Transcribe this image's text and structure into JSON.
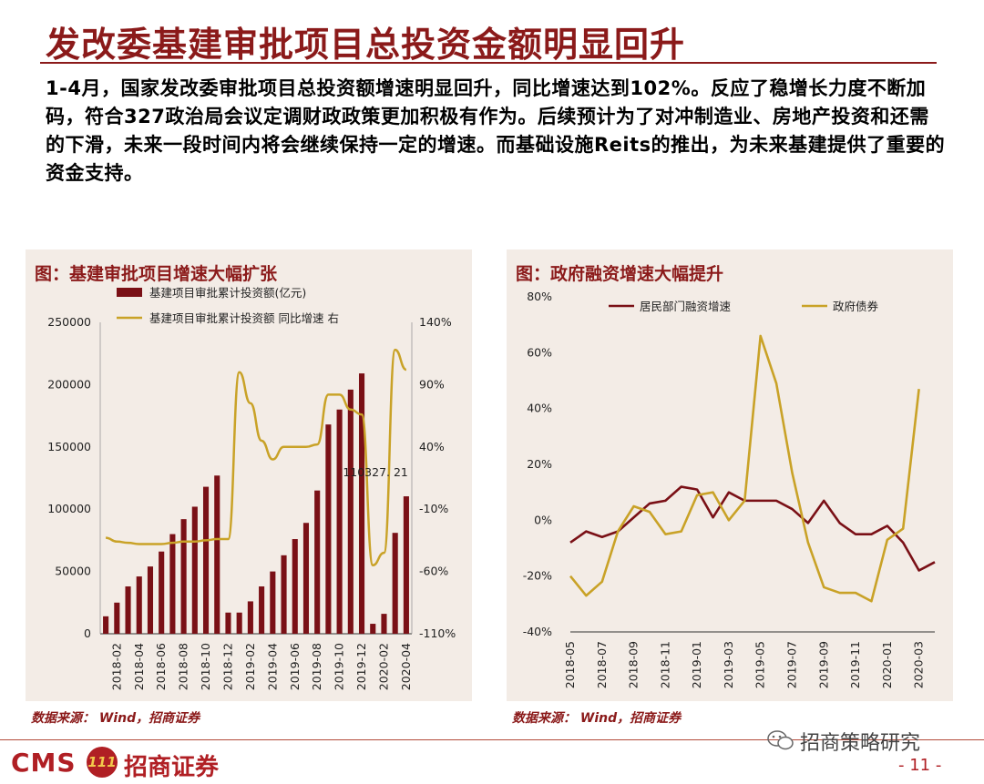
{
  "header": {
    "title": "发改委基建审批项目总投资金额明显回升",
    "paragraph": "1-4月，国家发改委审批项目总投资额增速明显回升，同比增速达到102%。反应了稳增长力度不断加码，符合327政治局会议定调财政政策更加积极有作为。后续预计为了对冲制造业、房地产投资和还需的下滑，未来一段时间内将会继续保持一定的增速。而基础设施Reits的推出，为未来基建提供了重要的资金支持。"
  },
  "left_panel": {
    "title": "图：基建审批项目增速大幅扩张",
    "source": "数据来源： Wind，招商证券"
  },
  "right_panel": {
    "title": "图：政府融资增速大幅提升",
    "source": "数据来源： Wind，招商证券"
  },
  "footer": {
    "logo_latin": "CMS",
    "logo_badge": "111",
    "logo_cn": "招商证券",
    "wechat_account": "招商策略研究",
    "page_number": "- 11 -"
  },
  "colors": {
    "brand": "#8b1a1a",
    "bar": "#7a1016",
    "gold": "#c9a227",
    "panel_bg": "#f3ece6"
  },
  "chart_data": [
    {
      "type": "bar+line",
      "title": "图：基建审批项目增速大幅扩张",
      "categories": [
        "2018-01",
        "2018-02",
        "2018-03",
        "2018-04",
        "2018-05",
        "2018-06",
        "2018-07",
        "2018-08",
        "2018-09",
        "2018-10",
        "2018-11",
        "2018-12",
        "2019-01",
        "2019-02",
        "2019-03",
        "2019-04",
        "2019-05",
        "2019-06",
        "2019-07",
        "2019-08",
        "2019-09",
        "2019-10",
        "2019-11",
        "2019-12",
        "2020-01",
        "2020-02",
        "2020-03",
        "2020-04"
      ],
      "x_tick_labels": [
        "2018-02",
        "2018-04",
        "2018-06",
        "2018-08",
        "2018-10",
        "2018-12",
        "2019-02",
        "2019-04",
        "2019-06",
        "2019-08",
        "2019-10",
        "2019-12",
        "2020-02",
        "2020-04"
      ],
      "series": [
        {
          "name": "基建项目审批累计投资额(亿元)",
          "type": "bar",
          "axis": "left",
          "values": [
            14000,
            25000,
            38000,
            46000,
            54000,
            66000,
            80000,
            92000,
            102000,
            118000,
            127000,
            17000,
            17000,
            26000,
            38000,
            50000,
            63000,
            76000,
            89000,
            115000,
            168000,
            180000,
            196000,
            209000,
            8000,
            16000,
            81000,
            110327.21
          ]
        },
        {
          "name": "基建项目审批累计投资额 同比增速 右",
          "type": "line",
          "axis": "right",
          "values": [
            -33,
            -36,
            -37,
            -38,
            -38,
            -38,
            -37,
            -36,
            -36,
            -35,
            -34,
            -34,
            100,
            75,
            45,
            30,
            40,
            40,
            40,
            42,
            82,
            82,
            70,
            66,
            -55,
            -45,
            118,
            102
          ]
        }
      ],
      "y_left": {
        "ticks": [
          0,
          50000,
          100000,
          150000,
          200000,
          250000
        ],
        "lim": [
          0,
          250000
        ]
      },
      "y_right": {
        "ticks": [
          "140%",
          "90%",
          "40%",
          "-10%",
          "-60%",
          "-110%"
        ],
        "lim": [
          -110,
          140
        ]
      },
      "annotations": [
        {
          "text": "110327. 21"
        }
      ]
    },
    {
      "type": "line",
      "title": "图：政府融资增速大幅提升",
      "x_tick_labels": [
        "2018-05",
        "2018-07",
        "2018-09",
        "2018-11",
        "2019-01",
        "2019-03",
        "2019-05",
        "2019-07",
        "2019-09",
        "2019-11",
        "2020-01",
        "2020-03"
      ],
      "series": [
        {
          "name": "居民部门融资增速",
          "color": "#7a1016",
          "values": [
            -8,
            -4,
            -6,
            -4,
            1,
            6,
            7,
            12,
            11,
            1,
            10,
            7,
            7,
            7,
            4,
            -1,
            7,
            -1,
            -5,
            -5,
            -2,
            -8,
            -18,
            -15
          ]
        },
        {
          "name": "政府债券",
          "color": "#c9a227",
          "values": [
            -20,
            -27,
            -22,
            -4,
            5,
            3,
            -5,
            -4,
            9,
            10,
            0,
            7,
            66,
            49,
            17,
            -8,
            -24,
            -26,
            -26,
            -29,
            -7,
            -3,
            47
          ]
        }
      ],
      "y": {
        "ticks": [
          "80%",
          "60%",
          "40%",
          "20%",
          "0%",
          "-20%",
          "-40%"
        ],
        "lim": [
          -40,
          80
        ]
      }
    }
  ]
}
